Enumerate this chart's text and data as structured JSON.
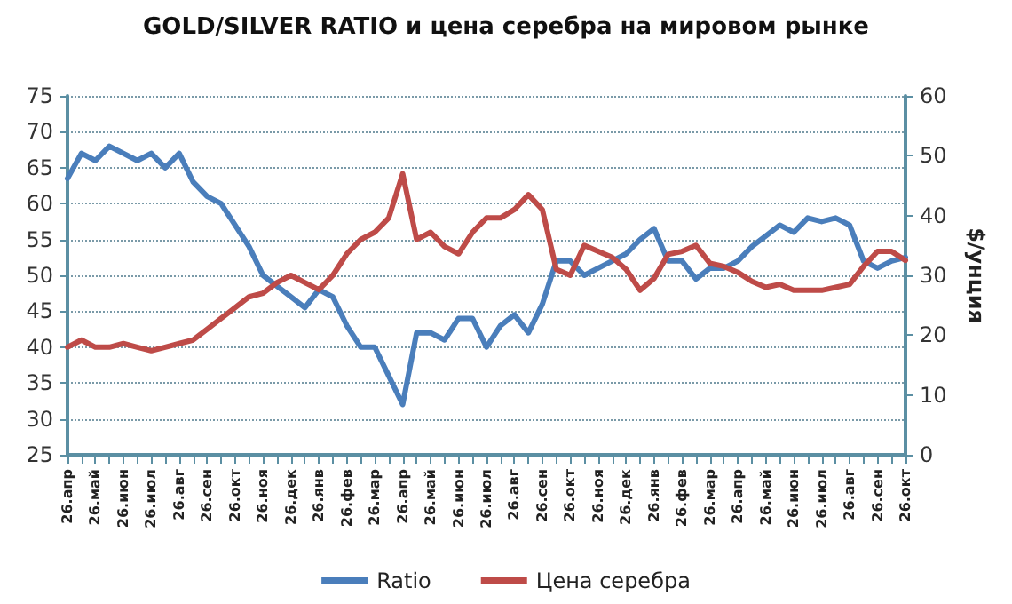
{
  "chart_data": {
    "type": "line",
    "title": "GOLD/SILVER RATIO и цена серебра на мировом рынке",
    "y2label": "$/унция",
    "categories": [
      "26.апр",
      null,
      "26.май",
      null,
      "26.июн",
      null,
      "26.июл",
      null,
      "26.авг",
      null,
      "26.сен",
      null,
      "26.окт",
      null,
      "26.ноя",
      null,
      "26.дек",
      null,
      "26.янв",
      null,
      "26.фев",
      null,
      "26.мар",
      null,
      "26.апр",
      null,
      "26.май",
      null,
      "26.июн",
      null,
      "26.июл",
      null,
      "26.авг",
      null,
      "26.сен",
      null,
      "26.окт",
      null,
      "26.ноя",
      null,
      "26.дек",
      null,
      "26.янв",
      null,
      "26.фев",
      null,
      "26.мар",
      null,
      "26.апр",
      null,
      "26.май",
      null,
      "26.июн",
      null,
      "26.июл",
      null,
      "26.авг",
      null,
      "26.сен",
      null,
      "26.окт"
    ],
    "series": [
      {
        "name": "Ratio",
        "color": "#4a7ebb",
        "values": [
          63.5,
          67,
          66,
          68,
          67,
          66,
          67,
          65,
          67,
          63,
          61,
          60,
          57,
          54,
          50,
          48.5,
          47,
          45.5,
          48,
          47,
          43,
          40,
          40,
          36,
          32,
          42,
          42,
          41,
          44,
          44,
          40,
          43,
          44.5,
          42,
          46,
          52,
          52,
          50,
          51,
          52,
          53,
          55,
          56.5,
          52,
          52,
          49.5,
          51,
          51,
          52,
          54,
          55.5,
          57,
          56,
          58,
          57.5,
          58,
          57,
          52,
          51,
          52,
          52.5
        ]
      },
      {
        "name": "Цена серебра",
        "color": "#be4b48",
        "axis": "y2",
        "values": [
          18,
          19.2,
          18,
          18,
          18.6,
          18,
          17.4,
          18,
          18.6,
          19.2,
          21,
          22.8,
          24.6,
          26.4,
          27,
          28.8,
          30,
          28.8,
          27.6,
          30,
          33.6,
          36,
          37.2,
          39.6,
          47,
          36,
          37.2,
          34.8,
          33.6,
          37.2,
          39.6,
          39.6,
          41,
          43.5,
          41,
          31,
          30,
          35,
          34,
          33,
          31,
          27.5,
          29.5,
          33.5,
          34,
          35,
          32,
          31.5,
          30.5,
          29,
          28,
          28.5,
          27.5,
          27.5,
          27.5,
          28,
          28.5,
          31.5,
          34,
          34,
          32.5
        ]
      }
    ],
    "ylim": [
      25,
      75
    ],
    "yticks": [
      25,
      30,
      35,
      40,
      45,
      50,
      55,
      60,
      65,
      70,
      75
    ],
    "y2lim": [
      0,
      60
    ],
    "y2ticks": [
      0,
      10,
      20,
      30,
      40,
      50,
      60
    ],
    "grid": "y",
    "legend": "bottom",
    "marker": "none",
    "line_style": "solid"
  }
}
